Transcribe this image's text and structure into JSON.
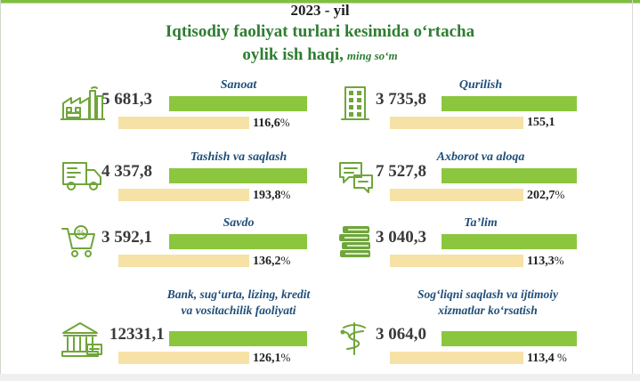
{
  "header": {
    "year": "2023 - yil",
    "title": "Iqtisodiy faoliyat turlari kesimida oʻrtacha",
    "subtitle": "oylik ish haqi,",
    "unit": "ming soʻm"
  },
  "colors": {
    "green_bar": "#8cc63f",
    "beige_bar": "#f6e2a7",
    "title_green": "#2e7d32",
    "icon_green": "#6fa63a",
    "label_blue": "#1f4e79",
    "top_rule": "#7fbf3f"
  },
  "chart_data": {
    "type": "bar",
    "title": "Iqtisodiy faoliyat turlari kesimida oʻrtacha oylik ish haqi, ming soʻm",
    "categories": [
      "Sanoat",
      "Qurilish",
      "Tashish va saqlash",
      "Axborot va aloqa",
      "Savdo",
      "Ta’lim",
      "Bank, sugʻurta, lizing, kredit va vositachilik faoliyati",
      "Sogʻliqni saqlash va ijtimoiy xizmatlar koʻrsatish"
    ],
    "series": [
      {
        "values": [
          5681.3,
          3735.8,
          4357.8,
          7527.8,
          3592.1,
          3040.3,
          12331.1,
          3064.0
        ],
        "value_labels": [
          "5 681,3",
          "3 735,8",
          "4 357,8",
          "7 527,8",
          "3 592,1",
          "3 040,3",
          "12331,1",
          "3 064,0"
        ]
      },
      {
        "values": [
          116.6,
          155.1,
          193.8,
          202.7,
          136.2,
          113.3,
          126.1,
          113.4
        ],
        "value_labels": [
          "116,6",
          "155,1",
          "193,8",
          "202,7",
          "136,2",
          "113,3",
          "126,1",
          "113,4"
        ],
        "suffixes": [
          "%",
          "",
          "%",
          "%",
          "%",
          "%",
          "%",
          " %"
        ]
      }
    ],
    "items": [
      {
        "icon": "factory-icon",
        "sector_lines": [
          "Sanoat"
        ]
      },
      {
        "icon": "building-icon",
        "sector_lines": [
          "Qurilish"
        ]
      },
      {
        "icon": "truck-icon",
        "sector_lines": [
          "Tashish va saqlash"
        ]
      },
      {
        "icon": "chat-bubbles-icon",
        "sector_lines": [
          "Axborot va aloqa"
        ]
      },
      {
        "icon": "shopping-cart-icon",
        "sector_lines": [
          "Savdo"
        ]
      },
      {
        "icon": "books-icon",
        "sector_lines": [
          "Ta’lim"
        ]
      },
      {
        "icon": "bank-icon",
        "sector_lines": [
          "Bank, sugʻurta, lizing, kredit",
          "va vositachilik faoliyati"
        ]
      },
      {
        "icon": "medical-caduceus-icon",
        "sector_lines": [
          "Sogʻliqni saqlash va ijtimoiy",
          "xizmatlar koʻrsatish"
        ]
      }
    ],
    "legend": "none",
    "grid": false
  }
}
